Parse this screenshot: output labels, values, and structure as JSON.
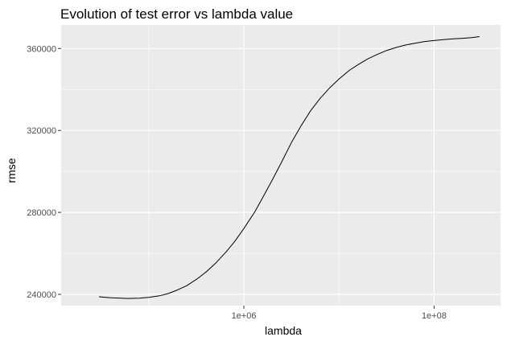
{
  "chart_data": {
    "type": "line",
    "title": "Evolution of test error vs lambda value",
    "xlabel": "lambda",
    "ylabel": "rmse",
    "x_scale": "log10",
    "xlim": [
      12000,
      500000000
    ],
    "ylim": [
      234500,
      371500
    ],
    "x_ticks": [
      {
        "value": 1000000,
        "label": "1e+06"
      },
      {
        "value": 100000000,
        "label": "1e+08"
      }
    ],
    "y_ticks": [
      {
        "value": 240000,
        "label": "240000"
      },
      {
        "value": 280000,
        "label": "280000"
      },
      {
        "value": 320000,
        "label": "320000"
      },
      {
        "value": 360000,
        "label": "360000"
      }
    ],
    "grid": true,
    "legend": "none",
    "colors": {
      "panel": "#ebebeb",
      "gridline": "#ffffff",
      "line": "#000000",
      "tick_text": "#4d4d4d"
    },
    "series": [
      {
        "color": "#000000",
        "points": [
          {
            "x": 30000,
            "y": 238800
          },
          {
            "x": 40000,
            "y": 238300
          },
          {
            "x": 60000,
            "y": 238000
          },
          {
            "x": 80000,
            "y": 238100
          },
          {
            "x": 100000,
            "y": 238500
          },
          {
            "x": 130000,
            "y": 239300
          },
          {
            "x": 160000,
            "y": 240400
          },
          {
            "x": 200000,
            "y": 242100
          },
          {
            "x": 250000,
            "y": 244200
          },
          {
            "x": 320000,
            "y": 247400
          },
          {
            "x": 400000,
            "y": 250900
          },
          {
            "x": 500000,
            "y": 255000
          },
          {
            "x": 650000,
            "y": 260700
          },
          {
            "x": 800000,
            "y": 265800
          },
          {
            "x": 1000000,
            "y": 272100
          },
          {
            "x": 1300000,
            "y": 280200
          },
          {
            "x": 1600000,
            "y": 287700
          },
          {
            "x": 2000000,
            "y": 296000
          },
          {
            "x": 2500000,
            "y": 304600
          },
          {
            "x": 3200000,
            "y": 314500
          },
          {
            "x": 4000000,
            "y": 322300
          },
          {
            "x": 5000000,
            "y": 329400
          },
          {
            "x": 6300000,
            "y": 335500
          },
          {
            "x": 8000000,
            "y": 340800
          },
          {
            "x": 10000000,
            "y": 345100
          },
          {
            "x": 13000000,
            "y": 349500
          },
          {
            "x": 16000000,
            "y": 352200
          },
          {
            "x": 20000000,
            "y": 354900
          },
          {
            "x": 25000000,
            "y": 357000
          },
          {
            "x": 32000000,
            "y": 359100
          },
          {
            "x": 40000000,
            "y": 360500
          },
          {
            "x": 50000000,
            "y": 361700
          },
          {
            "x": 63000000,
            "y": 362600
          },
          {
            "x": 80000000,
            "y": 363400
          },
          {
            "x": 100000000,
            "y": 363900
          },
          {
            "x": 130000000,
            "y": 364400
          },
          {
            "x": 160000000,
            "y": 364700
          },
          {
            "x": 200000000,
            "y": 365000
          },
          {
            "x": 250000000,
            "y": 365300
          },
          {
            "x": 300000000,
            "y": 365800
          }
        ]
      }
    ]
  }
}
